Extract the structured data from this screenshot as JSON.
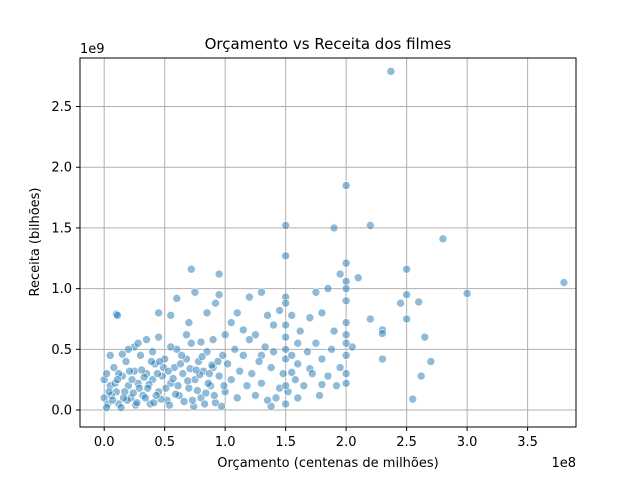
{
  "chart_data": {
    "type": "scatter",
    "title": "Orçamento vs Receita dos filmes",
    "xlabel": "Orçamento (centenas de milhões)",
    "ylabel": "Receita (bilhões)",
    "x_offset_label": "1e8",
    "y_offset_label": "1e9",
    "xlim": [
      -0.2,
      3.9
    ],
    "ylim": [
      -0.14,
      2.9
    ],
    "x_ticks": [
      0.0,
      0.5,
      1.0,
      1.5,
      2.0,
      2.5,
      3.0,
      3.5
    ],
    "x_tick_labels": [
      "0.0",
      "0.5",
      "1.0",
      "1.5",
      "2.0",
      "2.5",
      "3.0",
      "3.5"
    ],
    "y_ticks": [
      0.0,
      0.5,
      1.0,
      1.5,
      2.0,
      2.5
    ],
    "y_tick_labels": [
      "0.0",
      "0.5",
      "1.0",
      "1.5",
      "2.0",
      "2.5"
    ],
    "grid": true,
    "color": "#1f77b4",
    "points": [
      [
        2.37,
        2.79
      ],
      [
        2.0,
        1.85
      ],
      [
        1.5,
        1.52
      ],
      [
        1.9,
        1.5
      ],
      [
        2.2,
        1.52
      ],
      [
        2.8,
        1.41
      ],
      [
        1.5,
        1.27
      ],
      [
        2.0,
        1.21
      ],
      [
        0.72,
        1.16
      ],
      [
        0.95,
        1.12
      ],
      [
        2.5,
        1.16
      ],
      [
        3.8,
        1.05
      ],
      [
        3.0,
        0.96
      ],
      [
        2.0,
        1.06
      ],
      [
        2.1,
        1.09
      ],
      [
        1.95,
        1.12
      ],
      [
        1.85,
        1.0
      ],
      [
        1.75,
        0.97
      ],
      [
        1.5,
        0.93
      ],
      [
        1.3,
        0.97
      ],
      [
        1.2,
        0.93
      ],
      [
        0.95,
        0.95
      ],
      [
        0.75,
        0.97
      ],
      [
        0.6,
        0.92
      ],
      [
        0.1,
        0.79
      ],
      [
        0.11,
        0.78
      ],
      [
        0.45,
        0.8
      ],
      [
        2.5,
        0.95
      ],
      [
        2.45,
        0.88
      ],
      [
        2.6,
        0.89
      ],
      [
        2.5,
        0.75
      ],
      [
        2.65,
        0.6
      ],
      [
        2.3,
        0.66
      ],
      [
        2.3,
        0.63
      ],
      [
        2.2,
        0.75
      ],
      [
        2.0,
        0.62
      ],
      [
        2.05,
        0.52
      ],
      [
        2.3,
        0.42
      ],
      [
        2.7,
        0.4
      ],
      [
        2.62,
        0.28
      ],
      [
        2.55,
        0.09
      ],
      [
        2.0,
        0.22
      ],
      [
        1.92,
        0.2
      ],
      [
        1.8,
        0.21
      ],
      [
        1.7,
        0.34
      ],
      [
        1.6,
        0.55
      ],
      [
        1.55,
        0.31
      ],
      [
        1.6,
        0.1
      ],
      [
        1.5,
        0.05
      ],
      [
        1.42,
        0.1
      ],
      [
        1.38,
        0.03
      ],
      [
        1.3,
        0.45
      ],
      [
        1.25,
        0.62
      ],
      [
        1.4,
        0.7
      ],
      [
        1.45,
        0.82
      ],
      [
        1.55,
        0.78
      ],
      [
        1.7,
        0.76
      ],
      [
        1.8,
        0.8
      ],
      [
        1.1,
        0.8
      ],
      [
        1.05,
        0.72
      ],
      [
        0.92,
        0.88
      ],
      [
        0.85,
        0.8
      ],
      [
        0.7,
        0.72
      ],
      [
        0.55,
        0.78
      ],
      [
        0.45,
        0.6
      ],
      [
        0.35,
        0.58
      ],
      [
        0.25,
        0.52
      ],
      [
        0.2,
        0.5
      ],
      [
        0.05,
        0.45
      ],
      [
        0.0,
        0.25
      ],
      [
        0.0,
        0.1
      ],
      [
        0.02,
        0.3
      ],
      [
        0.05,
        0.2
      ],
      [
        0.08,
        0.35
      ],
      [
        0.1,
        0.15
      ],
      [
        0.12,
        0.05
      ],
      [
        0.15,
        0.28
      ],
      [
        0.18,
        0.4
      ],
      [
        0.2,
        0.2
      ],
      [
        0.22,
        0.1
      ],
      [
        0.25,
        0.32
      ],
      [
        0.28,
        0.22
      ],
      [
        0.3,
        0.45
      ],
      [
        0.32,
        0.12
      ],
      [
        0.35,
        0.3
      ],
      [
        0.38,
        0.05
      ],
      [
        0.4,
        0.25
      ],
      [
        0.42,
        0.38
      ],
      [
        0.45,
        0.15
      ],
      [
        0.48,
        0.28
      ],
      [
        0.5,
        0.42
      ],
      [
        0.52,
        0.08
      ],
      [
        0.55,
        0.22
      ],
      [
        0.58,
        0.35
      ],
      [
        0.6,
        0.5
      ],
      [
        0.62,
        0.12
      ],
      [
        0.65,
        0.3
      ],
      [
        0.68,
        0.42
      ],
      [
        0.7,
        0.18
      ],
      [
        0.72,
        0.55
      ],
      [
        0.75,
        0.25
      ],
      [
        0.78,
        0.4
      ],
      [
        0.8,
        0.1
      ],
      [
        0.82,
        0.32
      ],
      [
        0.85,
        0.48
      ],
      [
        0.88,
        0.2
      ],
      [
        0.9,
        0.35
      ],
      [
        0.92,
        0.06
      ],
      [
        0.95,
        0.28
      ],
      [
        0.98,
        0.45
      ],
      [
        1.0,
        0.15
      ],
      [
        1.02,
        0.38
      ],
      [
        1.05,
        0.25
      ],
      [
        1.08,
        0.5
      ],
      [
        1.1,
        0.1
      ],
      [
        1.12,
        0.32
      ],
      [
        1.15,
        0.45
      ],
      [
        1.18,
        0.2
      ],
      [
        1.2,
        0.58
      ],
      [
        1.22,
        0.3
      ],
      [
        1.25,
        0.12
      ],
      [
        1.28,
        0.4
      ],
      [
        1.3,
        0.22
      ],
      [
        1.33,
        0.52
      ],
      [
        1.35,
        0.08
      ],
      [
        1.38,
        0.35
      ],
      [
        1.4,
        0.48
      ],
      [
        1.45,
        0.18
      ],
      [
        1.48,
        0.3
      ],
      [
        1.5,
        0.42
      ],
      [
        1.5,
        0.6
      ],
      [
        1.5,
        0.7
      ],
      [
        1.52,
        0.15
      ],
      [
        1.55,
        0.45
      ],
      [
        1.58,
        0.25
      ],
      [
        1.6,
        0.38
      ],
      [
        1.62,
        0.65
      ],
      [
        1.65,
        0.2
      ],
      [
        1.68,
        0.48
      ],
      [
        1.72,
        0.3
      ],
      [
        1.75,
        0.55
      ],
      [
        1.78,
        0.12
      ],
      [
        1.8,
        0.42
      ],
      [
        1.85,
        0.28
      ],
      [
        1.88,
        0.5
      ],
      [
        1.9,
        0.65
      ],
      [
        1.95,
        0.35
      ],
      [
        2.0,
        0.45
      ],
      [
        2.0,
        0.72
      ],
      [
        2.0,
        0.3
      ],
      [
        2.0,
        0.9
      ],
      [
        2.0,
        1.0
      ],
      [
        2.0,
        0.55
      ],
      [
        1.5,
        0.88
      ],
      [
        1.5,
        0.5
      ],
      [
        1.5,
        0.2
      ],
      [
        0.03,
        0.05
      ],
      [
        0.06,
        0.12
      ],
      [
        0.09,
        0.22
      ],
      [
        0.12,
        0.3
      ],
      [
        0.14,
        0.02
      ],
      [
        0.17,
        0.15
      ],
      [
        0.19,
        0.08
      ],
      [
        0.23,
        0.25
      ],
      [
        0.26,
        0.04
      ],
      [
        0.29,
        0.18
      ],
      [
        0.31,
        0.33
      ],
      [
        0.34,
        0.1
      ],
      [
        0.37,
        0.21
      ],
      [
        0.39,
        0.4
      ],
      [
        0.41,
        0.06
      ],
      [
        0.44,
        0.3
      ],
      [
        0.47,
        0.09
      ],
      [
        0.49,
        0.35
      ],
      [
        0.51,
        0.18
      ],
      [
        0.54,
        0.04
      ],
      [
        0.57,
        0.26
      ],
      [
        0.59,
        0.13
      ],
      [
        0.63,
        0.38
      ],
      [
        0.66,
        0.07
      ],
      [
        0.69,
        0.24
      ],
      [
        0.71,
        0.34
      ],
      [
        0.74,
        0.03
      ],
      [
        0.77,
        0.16
      ],
      [
        0.79,
        0.29
      ],
      [
        0.83,
        0.05
      ],
      [
        0.86,
        0.22
      ],
      [
        0.89,
        0.37
      ],
      [
        0.91,
        0.12
      ],
      [
        0.94,
        0.4
      ],
      [
        0.97,
        0.03
      ],
      [
        0.99,
        0.2
      ],
      [
        0.15,
        0.46
      ],
      [
        0.28,
        0.55
      ],
      [
        0.4,
        0.48
      ],
      [
        0.55,
        0.52
      ],
      [
        0.68,
        0.62
      ],
      [
        0.8,
        0.56
      ],
      [
        0.9,
        0.58
      ],
      [
        1.0,
        0.62
      ],
      [
        1.15,
        0.66
      ],
      [
        1.35,
        0.78
      ],
      [
        0.02,
        0.02
      ],
      [
        0.04,
        0.15
      ],
      [
        0.07,
        0.08
      ],
      [
        0.11,
        0.25
      ],
      [
        0.16,
        0.1
      ],
      [
        0.21,
        0.32
      ],
      [
        0.24,
        0.14
      ],
      [
        0.27,
        0.06
      ],
      [
        0.33,
        0.27
      ],
      [
        0.36,
        0.18
      ],
      [
        0.43,
        0.12
      ],
      [
        0.46,
        0.4
      ],
      [
        0.53,
        0.32
      ],
      [
        0.61,
        0.2
      ],
      [
        0.64,
        0.45
      ],
      [
        0.73,
        0.08
      ],
      [
        0.76,
        0.33
      ],
      [
        0.81,
        0.44
      ],
      [
        0.84,
        0.14
      ],
      [
        0.87,
        0.3
      ]
    ]
  }
}
